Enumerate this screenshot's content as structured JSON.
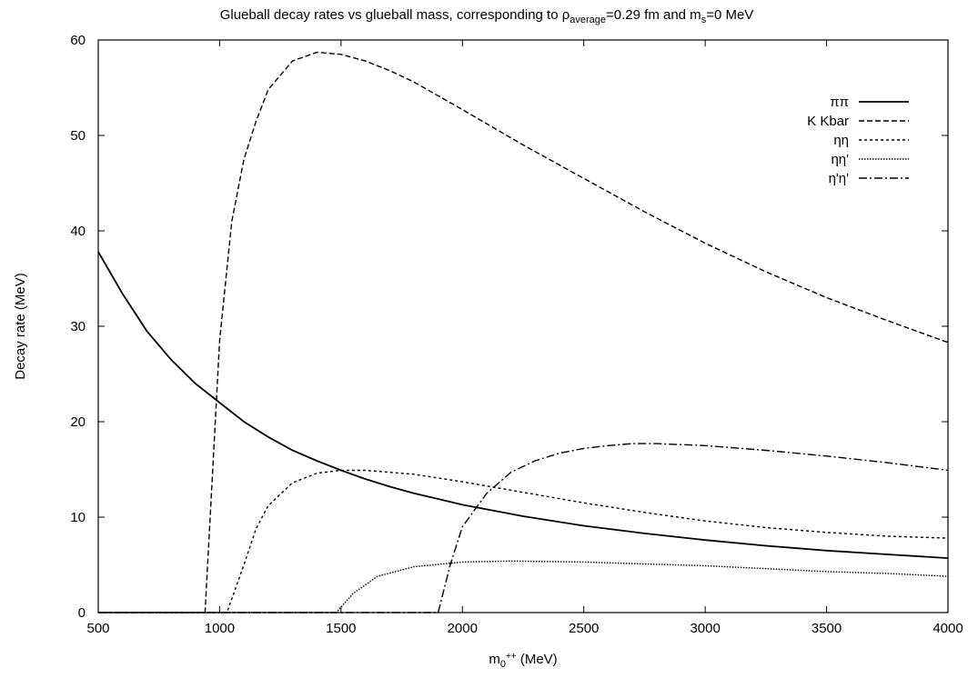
{
  "chart_data": {
    "type": "line",
    "title": {
      "prefix": "Glueball decay rates vs glueball mass, corresponding to ρ",
      "rho_sub": "average",
      "mid": "=0.29 fm and m",
      "ms_sub": "s",
      "suffix": "=0 MeV"
    },
    "xlabel": {
      "base": "m",
      "sub": "0",
      "sup": "++",
      "suffix": " (MeV)"
    },
    "ylabel": "Decay rate (MeV)",
    "xlim": [
      500,
      4000
    ],
    "ylim": [
      0,
      60
    ],
    "xticks": [
      500,
      1000,
      1500,
      2000,
      2500,
      3000,
      3500,
      4000
    ],
    "yticks": [
      0,
      10,
      20,
      30,
      40,
      50,
      60
    ],
    "grid": false,
    "legend_position": "top-right",
    "series": [
      {
        "name": "ππ",
        "dash": "solid",
        "points": [
          [
            500,
            37.8
          ],
          [
            600,
            33.4
          ],
          [
            700,
            29.5
          ],
          [
            800,
            26.5
          ],
          [
            900,
            24.0
          ],
          [
            1000,
            22.0
          ],
          [
            1100,
            20.0
          ],
          [
            1200,
            18.4
          ],
          [
            1300,
            17.0
          ],
          [
            1400,
            15.9
          ],
          [
            1500,
            14.9
          ],
          [
            1600,
            14.0
          ],
          [
            1700,
            13.2
          ],
          [
            1800,
            12.5
          ],
          [
            1900,
            11.9
          ],
          [
            2000,
            11.3
          ],
          [
            2250,
            10.1
          ],
          [
            2500,
            9.1
          ],
          [
            2750,
            8.3
          ],
          [
            3000,
            7.6
          ],
          [
            3250,
            7.0
          ],
          [
            3500,
            6.5
          ],
          [
            3750,
            6.1
          ],
          [
            4000,
            5.7
          ]
        ]
      },
      {
        "name": "K Kbar",
        "dash": "dashed",
        "points": [
          [
            500,
            0
          ],
          [
            940,
            0
          ],
          [
            1000,
            28.5
          ],
          [
            1050,
            41.0
          ],
          [
            1100,
            47.5
          ],
          [
            1150,
            51.5
          ],
          [
            1200,
            54.8
          ],
          [
            1300,
            57.8
          ],
          [
            1400,
            58.7
          ],
          [
            1500,
            58.5
          ],
          [
            1600,
            57.8
          ],
          [
            1700,
            56.8
          ],
          [
            1800,
            55.6
          ],
          [
            2000,
            52.7
          ],
          [
            2250,
            49.0
          ],
          [
            2500,
            45.5
          ],
          [
            2750,
            42.0
          ],
          [
            3000,
            38.7
          ],
          [
            3250,
            35.7
          ],
          [
            3500,
            33.0
          ],
          [
            3750,
            30.6
          ],
          [
            4000,
            28.3
          ]
        ]
      },
      {
        "name": "ηη",
        "dash": "dotted",
        "points": [
          [
            500,
            0
          ],
          [
            1030,
            0
          ],
          [
            1100,
            5.0
          ],
          [
            1150,
            8.8
          ],
          [
            1200,
            11.2
          ],
          [
            1300,
            13.6
          ],
          [
            1400,
            14.6
          ],
          [
            1500,
            14.9
          ],
          [
            1600,
            14.9
          ],
          [
            1800,
            14.5
          ],
          [
            2000,
            13.7
          ],
          [
            2250,
            12.6
          ],
          [
            2500,
            11.5
          ],
          [
            2750,
            10.5
          ],
          [
            3000,
            9.6
          ],
          [
            3250,
            8.9
          ],
          [
            3500,
            8.4
          ],
          [
            3750,
            8.0
          ],
          [
            4000,
            7.8
          ]
        ]
      },
      {
        "name": "ηη'",
        "dash": "finedot",
        "points": [
          [
            500,
            0
          ],
          [
            1480,
            0
          ],
          [
            1550,
            2.0
          ],
          [
            1650,
            3.8
          ],
          [
            1800,
            4.8
          ],
          [
            2000,
            5.3
          ],
          [
            2200,
            5.4
          ],
          [
            2500,
            5.3
          ],
          [
            2750,
            5.1
          ],
          [
            3000,
            4.9
          ],
          [
            3250,
            4.6
          ],
          [
            3500,
            4.3
          ],
          [
            3750,
            4.1
          ],
          [
            4000,
            3.8
          ]
        ]
      },
      {
        "name": "η'η'",
        "dash": "dashdot",
        "points": [
          [
            500,
            0
          ],
          [
            1900,
            0
          ],
          [
            1950,
            5.0
          ],
          [
            2000,
            9.0
          ],
          [
            2100,
            12.5
          ],
          [
            2200,
            14.7
          ],
          [
            2300,
            15.9
          ],
          [
            2400,
            16.7
          ],
          [
            2500,
            17.2
          ],
          [
            2600,
            17.5
          ],
          [
            2700,
            17.7
          ],
          [
            2800,
            17.7
          ],
          [
            3000,
            17.5
          ],
          [
            3250,
            17.0
          ],
          [
            3500,
            16.4
          ],
          [
            3750,
            15.7
          ],
          [
            4000,
            14.9
          ]
        ]
      }
    ]
  }
}
